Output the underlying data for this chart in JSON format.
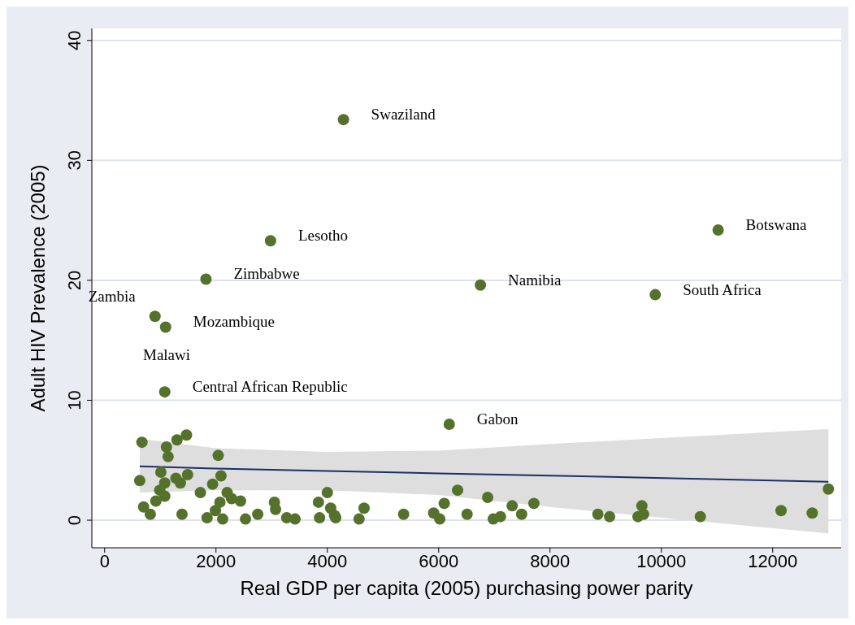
{
  "chart_data": {
    "type": "scatter",
    "xlabel": "Real GDP per capita (2005) purchasing power parity",
    "ylabel": "Adult HIV Prevalence (2005)",
    "xlim": [
      -230,
      13230
    ],
    "xticks": [
      0,
      2000,
      4000,
      6000,
      8000,
      10000,
      12000
    ],
    "ylim": [
      -2.3,
      41
    ],
    "yticks": [
      0,
      10,
      20,
      30,
      40
    ],
    "grid": "y",
    "legend": false,
    "series": [
      {
        "marker": "circle",
        "color": "#55722c",
        "x": [
          4290,
          2980,
          11020,
          1820,
          6750,
          9890,
          905,
          1095,
          1080,
          6190,
          670,
          1110,
          1140,
          1300,
          1470,
          2040,
          630,
          1010,
          1080,
          1280,
          1360,
          1490,
          990,
          1080,
          920,
          700,
          820,
          1390,
          1720,
          1940,
          2090,
          2200,
          2280,
          2440,
          2070,
          1990,
          1840,
          2120,
          2530,
          2750,
          3050,
          3070,
          3270,
          3420,
          3840,
          4000,
          4060,
          3860,
          4130,
          4150,
          4570,
          4660,
          5370,
          5910,
          6100,
          6020,
          6340,
          6510,
          6880,
          6980,
          7110,
          7320,
          7490,
          7710,
          8860,
          9070,
          9650,
          9580,
          9680,
          10700,
          12150,
          12710,
          13000
        ],
        "values": [
          33.4,
          23.3,
          24.2,
          20.1,
          19.6,
          18.8,
          17.0,
          16.1,
          10.7,
          8.0,
          6.5,
          6.1,
          5.3,
          6.7,
          7.1,
          5.4,
          3.3,
          4.0,
          3.1,
          3.5,
          3.1,
          3.8,
          2.5,
          2.0,
          1.6,
          1.1,
          0.5,
          0.5,
          2.3,
          3.0,
          3.7,
          2.3,
          1.8,
          1.6,
          1.5,
          0.8,
          0.2,
          0.1,
          0.1,
          0.5,
          1.5,
          0.9,
          0.2,
          0.1,
          1.5,
          2.3,
          1.0,
          0.2,
          0.4,
          0.2,
          0.1,
          1.0,
          0.5,
          0.6,
          1.4,
          0.1,
          2.5,
          0.5,
          1.9,
          0.1,
          0.3,
          1.2,
          0.5,
          1.4,
          0.5,
          0.3,
          1.2,
          0.3,
          0.5,
          0.3,
          0.8,
          0.6,
          2.6
        ]
      },
      {
        "type": "line",
        "marker": "none",
        "color": "#1a2f6b",
        "x": [
          630,
          2000,
          4000,
          6000,
          8200,
          13000
        ],
        "values": [
          4.5,
          4.3,
          4.1,
          3.9,
          3.7,
          3.2
        ],
        "lower": [
          2.3,
          2.5,
          2.5,
          2.1,
          1.0,
          -1.1
        ],
        "upper": [
          6.8,
          6.0,
          5.7,
          5.8,
          6.4,
          7.6
        ]
      }
    ],
    "annotations": [
      {
        "text": "Swaziland",
        "x": 4290,
        "y": 33.4
      },
      {
        "text": "Lesotho",
        "x": 2980,
        "y": 23.3
      },
      {
        "text": "Botswana",
        "x": 11020,
        "y": 24.2
      },
      {
        "text": "Zimbabwe",
        "x": 1820,
        "y": 20.1
      },
      {
        "text": "Namibia",
        "x": 6750,
        "y": 19.6
      },
      {
        "text": "South Africa",
        "x": 9890,
        "y": 18.8
      },
      {
        "text": "Zambia",
        "x": 905,
        "y": 17.0
      },
      {
        "text": "Mozambique",
        "x": 1095,
        "y": 16.1
      },
      {
        "text": "Central African Republic",
        "x": 1080,
        "y": 10.7
      },
      {
        "text": "Gabon",
        "x": 6190,
        "y": 8.0
      },
      "Malawi"
    ]
  }
}
